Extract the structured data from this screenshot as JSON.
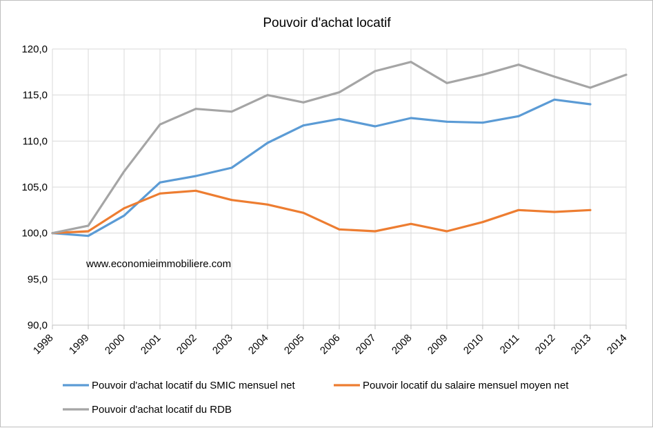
{
  "chart_data": {
    "type": "line",
    "title": "Pouvoir d'achat locatif",
    "annotation": "www.economieimmobiliere.com",
    "x": [
      "1998",
      "1999",
      "2000",
      "2001",
      "2002",
      "2003",
      "2004",
      "2005",
      "2006",
      "2007",
      "2008",
      "2009",
      "2010",
      "2011",
      "2012",
      "2013",
      "2014"
    ],
    "y_ticks": [
      "90,0",
      "95,0",
      "100,0",
      "105,0",
      "110,0",
      "115,0",
      "120,0"
    ],
    "ylim": [
      90,
      120
    ],
    "grid": true,
    "legend_position": "bottom",
    "series": [
      {
        "name": "Pouvoir d'achat locatif du SMIC mensuel net",
        "color": "#5b9bd5",
        "values": [
          100.0,
          99.7,
          101.9,
          105.5,
          106.2,
          107.1,
          109.8,
          111.7,
          112.4,
          111.6,
          112.5,
          112.1,
          112.0,
          112.7,
          114.5,
          114.0,
          null
        ]
      },
      {
        "name": "Pouvoir locatif du salaire mensuel moyen net",
        "color": "#ed7d31",
        "values": [
          100.0,
          100.2,
          102.7,
          104.3,
          104.6,
          103.6,
          103.1,
          102.2,
          100.4,
          100.2,
          101.0,
          100.2,
          101.2,
          102.5,
          102.3,
          102.5,
          null
        ]
      },
      {
        "name": "Pouvoir d'achat locatif du RDB",
        "color": "#a5a5a5",
        "values": [
          100.0,
          100.8,
          106.7,
          111.8,
          113.5,
          113.2,
          115.0,
          114.2,
          115.3,
          117.6,
          118.6,
          116.3,
          117.2,
          118.3,
          117.0,
          115.8,
          117.2
        ]
      }
    ]
  }
}
